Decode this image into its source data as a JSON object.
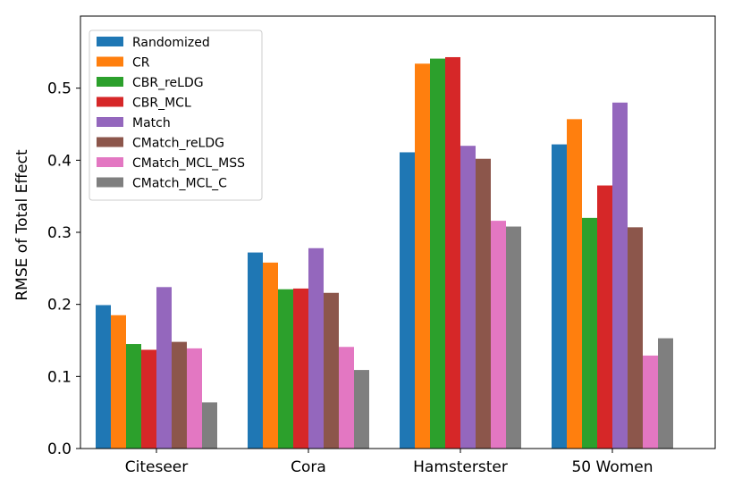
{
  "chart_data": {
    "type": "bar",
    "title": "",
    "xlabel": "",
    "ylabel": "RMSE of Total Effect",
    "ylim": [
      0,
      0.6
    ],
    "yticks": [
      0.0,
      0.1,
      0.2,
      0.3,
      0.4,
      0.5
    ],
    "ytick_labels": [
      "0.0",
      "0.1",
      "0.2",
      "0.3",
      "0.4",
      "0.5"
    ],
    "grid": false,
    "legend_position": "top-left",
    "categories": [
      "Citeseer",
      "Cora",
      "Hamsterster",
      "50 Women"
    ],
    "series": [
      {
        "name": "Randomized",
        "color": "#1f77b4",
        "values": [
          0.199,
          0.272,
          0.411,
          0.422
        ]
      },
      {
        "name": "CR",
        "color": "#ff7f0e",
        "values": [
          0.185,
          0.258,
          0.534,
          0.457
        ]
      },
      {
        "name": "CBR_reLDG",
        "color": "#2ca02c",
        "values": [
          0.145,
          0.221,
          0.541,
          0.32
        ]
      },
      {
        "name": "CBR_MCL",
        "color": "#d62728",
        "values": [
          0.137,
          0.222,
          0.543,
          0.365
        ]
      },
      {
        "name": "Match",
        "color": "#9467bd",
        "values": [
          0.224,
          0.278,
          0.42,
          0.48
        ]
      },
      {
        "name": "CMatch_reLDG",
        "color": "#8c564b",
        "values": [
          0.148,
          0.216,
          0.402,
          0.307
        ]
      },
      {
        "name": "CMatch_MCL_MSS",
        "color": "#e377c2",
        "values": [
          0.139,
          0.141,
          0.316,
          0.129
        ]
      },
      {
        "name": "CMatch_MCL_C",
        "color": "#7f7f7f",
        "values": [
          0.064,
          0.109,
          0.308,
          0.153
        ]
      }
    ]
  }
}
